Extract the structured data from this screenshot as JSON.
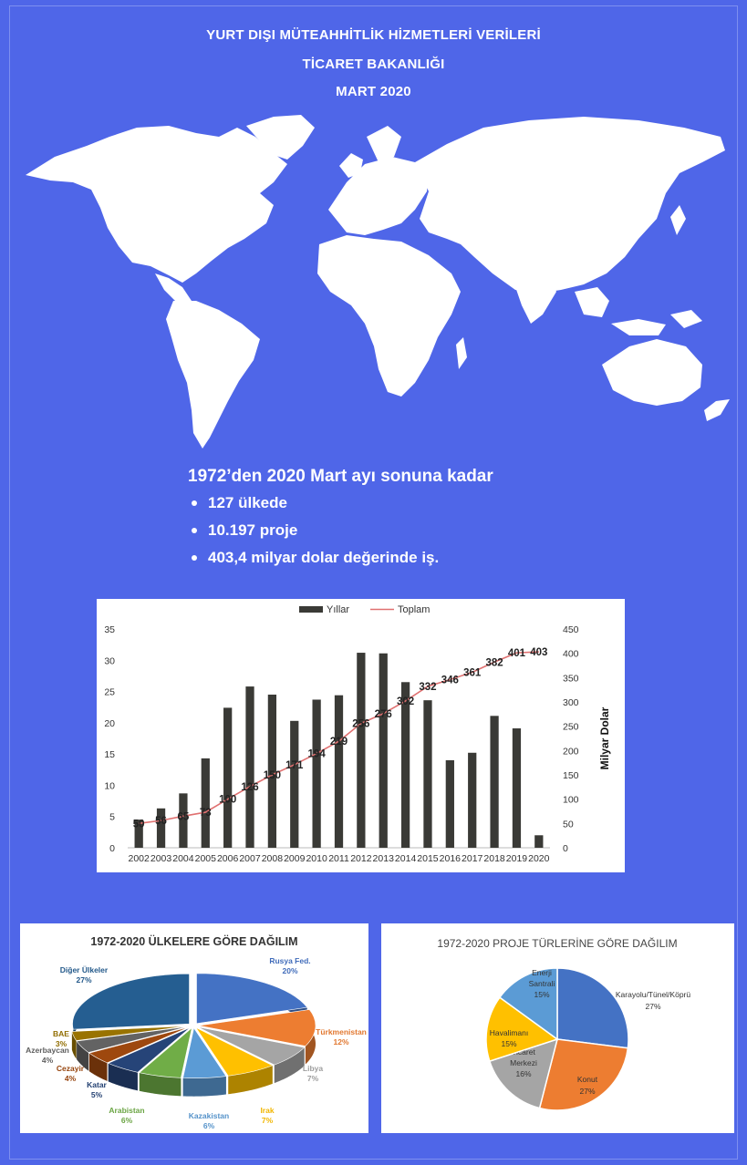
{
  "header": {
    "line1": "YURT DIŞI MÜTEAHHİTLİK HİZMETLERİ VERİLERİ",
    "line2": "TİCARET BAKANLIĞI",
    "line3": "MART 2020"
  },
  "summary": {
    "lead": "1972’den 2020 Mart ayı sonuna kadar",
    "bullets": [
      "127 ülkede",
      "10.197 proje",
      "403,4 milyar dolar değerinde iş."
    ]
  },
  "colors": {
    "background": "#4f66e8",
    "bar": "#3a3a36",
    "line": "#e07070",
    "map": "#ffffff"
  },
  "icons": {
    "map": "world-map-silhouette"
  },
  "chart_data": [
    {
      "type": "bar+line",
      "title": "",
      "legend": [
        "Yıllar",
        "Toplam"
      ],
      "legend_position": "top",
      "categories": [
        "2002",
        "2003",
        "2004",
        "2005",
        "2006",
        "2007",
        "2008",
        "2009",
        "2010",
        "2011",
        "2012",
        "2013",
        "2014",
        "2015",
        "2016",
        "2017",
        "2018",
        "2019",
        "2020"
      ],
      "series": [
        {
          "name": "Yıllar",
          "type": "bar",
          "axis": "left",
          "values": [
            4.5,
            6.3,
            8.7,
            14.3,
            22.4,
            25.8,
            24.5,
            20.3,
            23.7,
            24.4,
            31.2,
            31.1,
            26.5,
            23.6,
            14.0,
            15.2,
            21.1,
            19.1,
            2.0
          ]
        },
        {
          "name": "Toplam",
          "type": "line",
          "axis": "right",
          "values": [
            50,
            56,
            65,
            73,
            100,
            126,
            150,
            171,
            194,
            219,
            256,
            276,
            302,
            332,
            346,
            361,
            382,
            401,
            403
          ],
          "labels": [
            "50",
            "56",
            "65",
            "73",
            "100",
            "126",
            "150",
            "171",
            "194",
            "219",
            "256",
            "276",
            "302",
            "332",
            "346",
            "361",
            "382",
            "401",
            "403"
          ]
        }
      ],
      "ylim_left": [
        0,
        35
      ],
      "yticks_left": [
        "0",
        "5",
        "10",
        "15",
        "20",
        "25",
        "30",
        "35"
      ],
      "ylim_right": [
        0,
        450
      ],
      "yticks_right": [
        "0",
        "50",
        "100",
        "150",
        "200",
        "250",
        "300",
        "350",
        "400",
        "450"
      ],
      "ylabel_right": "Milyar Dolar",
      "grid": false
    },
    {
      "type": "pie",
      "style": "3d-exploded",
      "title": "1972-2020 ÜLKELERE GÖRE DAĞILIM",
      "slices": [
        {
          "label": "Rusya Fed.",
          "pct": "20%",
          "value": 20,
          "color": "#4472c4"
        },
        {
          "label": "Türkmenistan",
          "pct": "12%",
          "value": 12,
          "color": "#ed7d31"
        },
        {
          "label": "Libya",
          "pct": "7%",
          "value": 7,
          "color": "#a5a5a5"
        },
        {
          "label": "Irak",
          "pct": "7%",
          "value": 7,
          "color": "#ffc000"
        },
        {
          "label": "Kazakistan",
          "pct": "6%",
          "value": 6,
          "color": "#5b9bd5"
        },
        {
          "label": "Arabistan",
          "pct": "6%",
          "value": 6,
          "color": "#70ad47"
        },
        {
          "label": "Katar",
          "pct": "5%",
          "value": 5,
          "color": "#264478"
        },
        {
          "label": "Cezayir",
          "pct": "4%",
          "value": 4,
          "color": "#9e480e"
        },
        {
          "label": "Azerbaycan",
          "pct": "4%",
          "value": 4,
          "color": "#636363"
        },
        {
          "label": "BAE",
          "pct": "3%",
          "value": 3,
          "color": "#997300"
        },
        {
          "label": "Diğer Ülkeler",
          "pct": "27%",
          "value": 27,
          "color": "#255e91"
        }
      ]
    },
    {
      "type": "pie",
      "title": "1972-2020 PROJE TÜRLERİNE GÖRE DAĞILIM",
      "slices": [
        {
          "label": "Karayolu/Tünel/Köprü",
          "pct": "27%",
          "value": 27,
          "color": "#4472c4"
        },
        {
          "label": "Konut",
          "pct": "27%",
          "value": 27,
          "color": "#ed7d31"
        },
        {
          "label": "Ticaret Merkezi",
          "pct": "16%",
          "value": 16,
          "color": "#a5a5a5"
        },
        {
          "label": "Havalimanı",
          "pct": "15%",
          "value": 15,
          "color": "#ffc000"
        },
        {
          "label": "Enerji Santrali",
          "pct": "15%",
          "value": 15,
          "color": "#5b9bd5"
        }
      ]
    }
  ]
}
